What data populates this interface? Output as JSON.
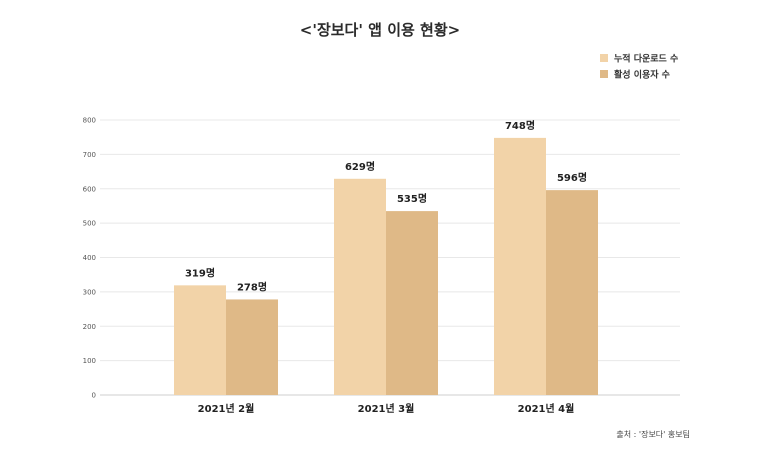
{
  "chart_data": {
    "type": "bar",
    "title": "<'장보다' 앱 이용 현황>",
    "categories": [
      "2021년 2월",
      "2021년 3월",
      "2021년 4월"
    ],
    "series": [
      {
        "name": "누적 다운로드 수",
        "values": [
          319,
          629,
          748
        ],
        "labels": [
          "319명",
          "629명",
          "748명"
        ],
        "color": "#f2d3a8"
      },
      {
        "name": "활성 이용자 수",
        "values": [
          278,
          535,
          596
        ],
        "labels": [
          "278명",
          "535명",
          "596명"
        ],
        "color": "#dfb987"
      }
    ],
    "ylim": [
      0,
      800
    ],
    "yticks": [
      0,
      100,
      200,
      300,
      400,
      500,
      600,
      700,
      800
    ],
    "grid": true,
    "legend": "top-right",
    "source": "출처 : '장보다' 홍보팀"
  }
}
